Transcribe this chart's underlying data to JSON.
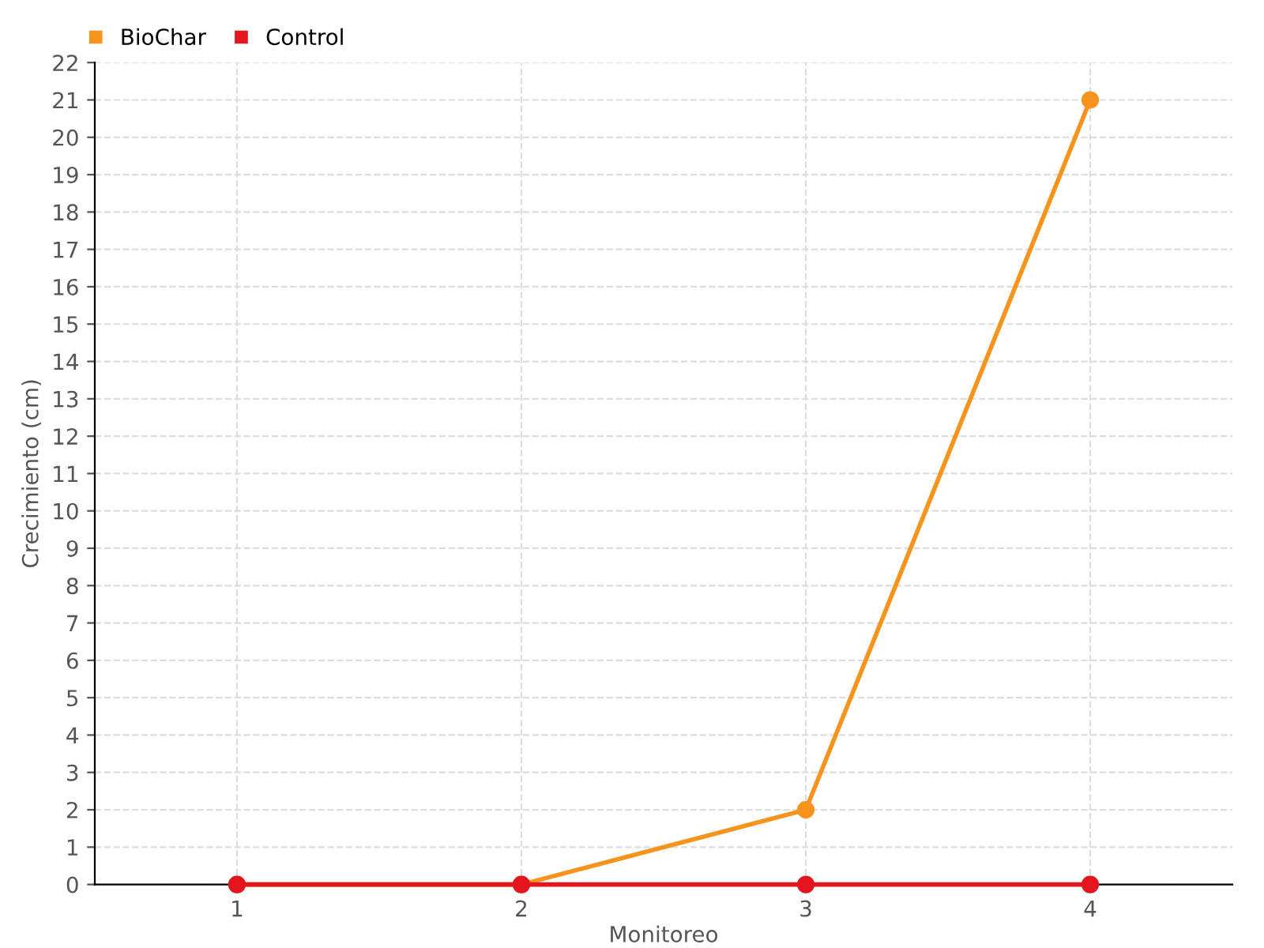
{
  "chart_data": {
    "type": "line",
    "xlabel": "Monitoreo",
    "ylabel": "Crecimiento (cm)",
    "categories": [
      "1",
      "2",
      "3",
      "4"
    ],
    "series": [
      {
        "name": "BioChar",
        "color": "#f7941d",
        "values": [
          0,
          0,
          2,
          21
        ]
      },
      {
        "name": "Control",
        "color": "#e3161f",
        "values": [
          0,
          0,
          0,
          0
        ]
      }
    ],
    "ylim": [
      0,
      22
    ],
    "yticks": [
      0,
      1,
      2,
      3,
      4,
      5,
      6,
      7,
      8,
      9,
      10,
      11,
      12,
      13,
      14,
      15,
      16,
      17,
      18,
      19,
      20,
      21,
      22
    ],
    "grid": true,
    "legend": "top left",
    "marker": "circle",
    "line_style": "solid"
  }
}
